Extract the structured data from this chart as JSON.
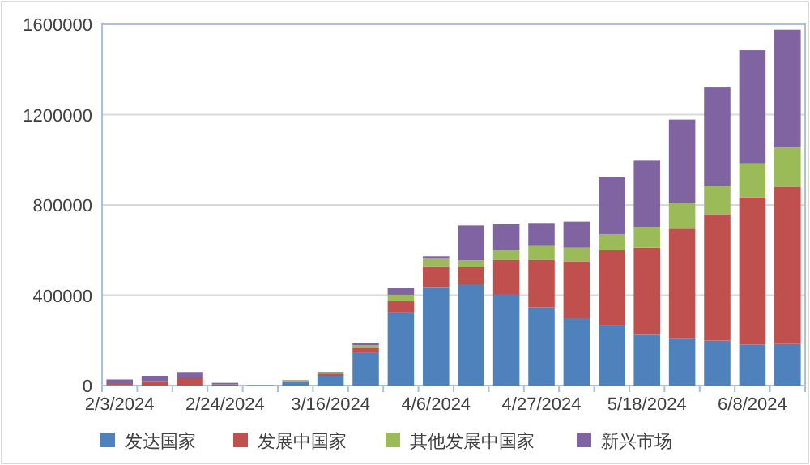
{
  "chart_data": {
    "type": "bar",
    "stacked": true,
    "grid": "y",
    "legend": "bottom",
    "categories": [
      "2/3/2024",
      null,
      null,
      "2/24/2024",
      null,
      null,
      "3/16/2024",
      null,
      null,
      "4/6/2024",
      null,
      null,
      "4/27/2024",
      null,
      null,
      "5/18/2024",
      null,
      null,
      "6/8/2024",
      null
    ],
    "ylim": [
      0,
      1600000
    ],
    "yticks": [
      0,
      400000,
      800000,
      1200000,
      1600000
    ],
    "series": [
      {
        "name": "发达国家",
        "color": "#4f81bd",
        "values": [
          2000,
          0,
          0,
          0,
          1000,
          15000,
          43000,
          144000,
          326000,
          436000,
          450000,
          402000,
          347000,
          299000,
          266000,
          228000,
          211000,
          199000,
          182000,
          184000
        ]
      },
      {
        "name": "发展中国家",
        "color": "#c0504d",
        "values": [
          5000,
          19000,
          34000,
          5000,
          1000,
          5000,
          10000,
          24000,
          50000,
          93000,
          75000,
          156000,
          211000,
          252000,
          333000,
          383000,
          484000,
          560000,
          652000,
          697000
        ]
      },
      {
        "name": "其他发展中国家",
        "color": "#9bbb59",
        "values": [
          0,
          0,
          0,
          0,
          0,
          2000,
          4000,
          10000,
          26000,
          34000,
          30000,
          43000,
          60000,
          60000,
          72000,
          91000,
          115000,
          127000,
          150000,
          173000
        ]
      },
      {
        "name": "新兴市场",
        "color": "#8064a2",
        "values": [
          20000,
          24000,
          26000,
          7000,
          0,
          2000,
          3000,
          12000,
          31000,
          10000,
          154000,
          113000,
          102000,
          115000,
          254000,
          294000,
          368000,
          434000,
          501000,
          522000
        ]
      }
    ]
  }
}
